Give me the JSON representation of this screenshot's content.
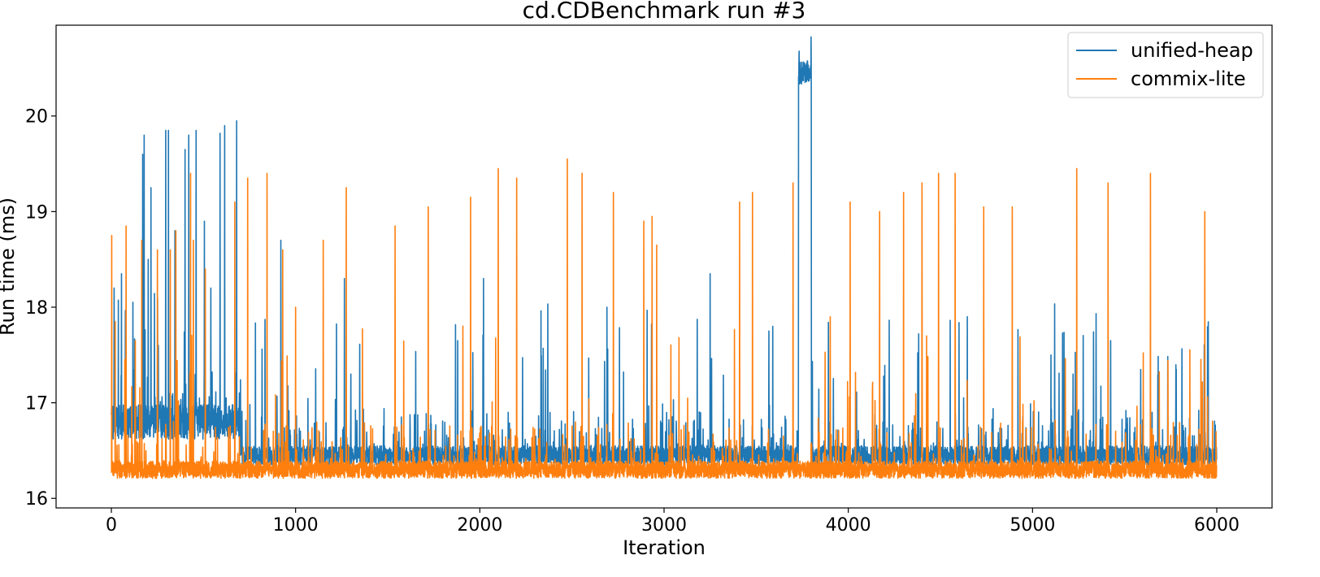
{
  "chart_data": {
    "type": "line",
    "title": "cd.CDBenchmark run #3",
    "xlabel": "Iteration",
    "ylabel": "Run time (ms)",
    "xlim": [
      -300,
      6300
    ],
    "ylim": [
      15.9,
      20.95
    ],
    "xticks": [
      0,
      1000,
      2000,
      3000,
      4000,
      5000,
      6000
    ],
    "yticks": [
      16,
      17,
      18,
      19,
      20
    ],
    "legend_position": "upper-right",
    "grid": false,
    "iterations": 6000,
    "series": [
      {
        "name": "unified-heap",
        "color": "#1f77b4",
        "baseline_segments": [
          {
            "x_start": 0,
            "x_end": 700,
            "level": 16.8,
            "spread": 0.18
          },
          {
            "x_start": 700,
            "x_end": 3730,
            "level": 16.45,
            "spread": 0.1
          },
          {
            "x_start": 3730,
            "x_end": 3800,
            "level": 20.45,
            "spread": 0.12
          },
          {
            "x_start": 3800,
            "x_end": 6000,
            "level": 16.45,
            "spread": 0.1
          }
        ],
        "spikes": [
          {
            "x": 15,
            "y": 18.2
          },
          {
            "x": 55,
            "y": 18.35
          },
          {
            "x": 170,
            "y": 19.6
          },
          {
            "x": 178,
            "y": 19.8
          },
          {
            "x": 200,
            "y": 18.5
          },
          {
            "x": 215,
            "y": 19.25
          },
          {
            "x": 255,
            "y": 17.6
          },
          {
            "x": 295,
            "y": 19.85
          },
          {
            "x": 310,
            "y": 19.85
          },
          {
            "x": 345,
            "y": 18.8
          },
          {
            "x": 400,
            "y": 19.65
          },
          {
            "x": 420,
            "y": 19.8
          },
          {
            "x": 460,
            "y": 19.85
          },
          {
            "x": 505,
            "y": 18.9
          },
          {
            "x": 540,
            "y": 18.2
          },
          {
            "x": 590,
            "y": 19.82
          },
          {
            "x": 615,
            "y": 19.9
          },
          {
            "x": 680,
            "y": 19.95
          },
          {
            "x": 920,
            "y": 18.7
          },
          {
            "x": 1265,
            "y": 18.3
          },
          {
            "x": 1300,
            "y": 17.3
          },
          {
            "x": 1880,
            "y": 17.65
          },
          {
            "x": 2020,
            "y": 18.3
          },
          {
            "x": 2690,
            "y": 18.0
          },
          {
            "x": 3250,
            "y": 18.35
          },
          {
            "x": 3590,
            "y": 17.8
          },
          {
            "x": 5100,
            "y": 17.5
          },
          {
            "x": 5220,
            "y": 17.3
          }
        ]
      },
      {
        "name": "commix-lite",
        "color": "#ff7f0e",
        "baseline_segments": [
          {
            "x_start": 0,
            "x_end": 6000,
            "level": 16.3,
            "spread": 0.09
          }
        ],
        "spikes": [
          {
            "x": 2,
            "y": 18.75
          },
          {
            "x": 80,
            "y": 18.85
          },
          {
            "x": 130,
            "y": 17.65
          },
          {
            "x": 165,
            "y": 18.7
          },
          {
            "x": 250,
            "y": 18.6
          },
          {
            "x": 320,
            "y": 18.6
          },
          {
            "x": 350,
            "y": 18.8
          },
          {
            "x": 430,
            "y": 19.4
          },
          {
            "x": 445,
            "y": 18.7
          },
          {
            "x": 510,
            "y": 18.4
          },
          {
            "x": 670,
            "y": 19.1
          },
          {
            "x": 740,
            "y": 19.35
          },
          {
            "x": 845,
            "y": 19.4
          },
          {
            "x": 930,
            "y": 18.6
          },
          {
            "x": 1000,
            "y": 18.0
          },
          {
            "x": 1150,
            "y": 18.7
          },
          {
            "x": 1275,
            "y": 19.25
          },
          {
            "x": 1540,
            "y": 18.85
          },
          {
            "x": 1720,
            "y": 19.05
          },
          {
            "x": 1950,
            "y": 19.15
          },
          {
            "x": 2100,
            "y": 19.45
          },
          {
            "x": 2200,
            "y": 19.35
          },
          {
            "x": 2475,
            "y": 19.55
          },
          {
            "x": 2555,
            "y": 19.4
          },
          {
            "x": 2725,
            "y": 19.2
          },
          {
            "x": 2890,
            "y": 18.9
          },
          {
            "x": 2935,
            "y": 18.95
          },
          {
            "x": 2960,
            "y": 18.65
          },
          {
            "x": 3410,
            "y": 19.1
          },
          {
            "x": 3480,
            "y": 19.2
          },
          {
            "x": 3700,
            "y": 19.3
          },
          {
            "x": 4010,
            "y": 19.1
          },
          {
            "x": 4170,
            "y": 19.0
          },
          {
            "x": 4300,
            "y": 19.2
          },
          {
            "x": 4400,
            "y": 19.3
          },
          {
            "x": 4490,
            "y": 19.4
          },
          {
            "x": 4580,
            "y": 19.4
          },
          {
            "x": 4735,
            "y": 19.05
          },
          {
            "x": 4890,
            "y": 19.05
          },
          {
            "x": 5240,
            "y": 19.45
          },
          {
            "x": 5410,
            "y": 19.3
          },
          {
            "x": 5640,
            "y": 19.4
          },
          {
            "x": 5935,
            "y": 19.0
          }
        ]
      }
    ]
  }
}
